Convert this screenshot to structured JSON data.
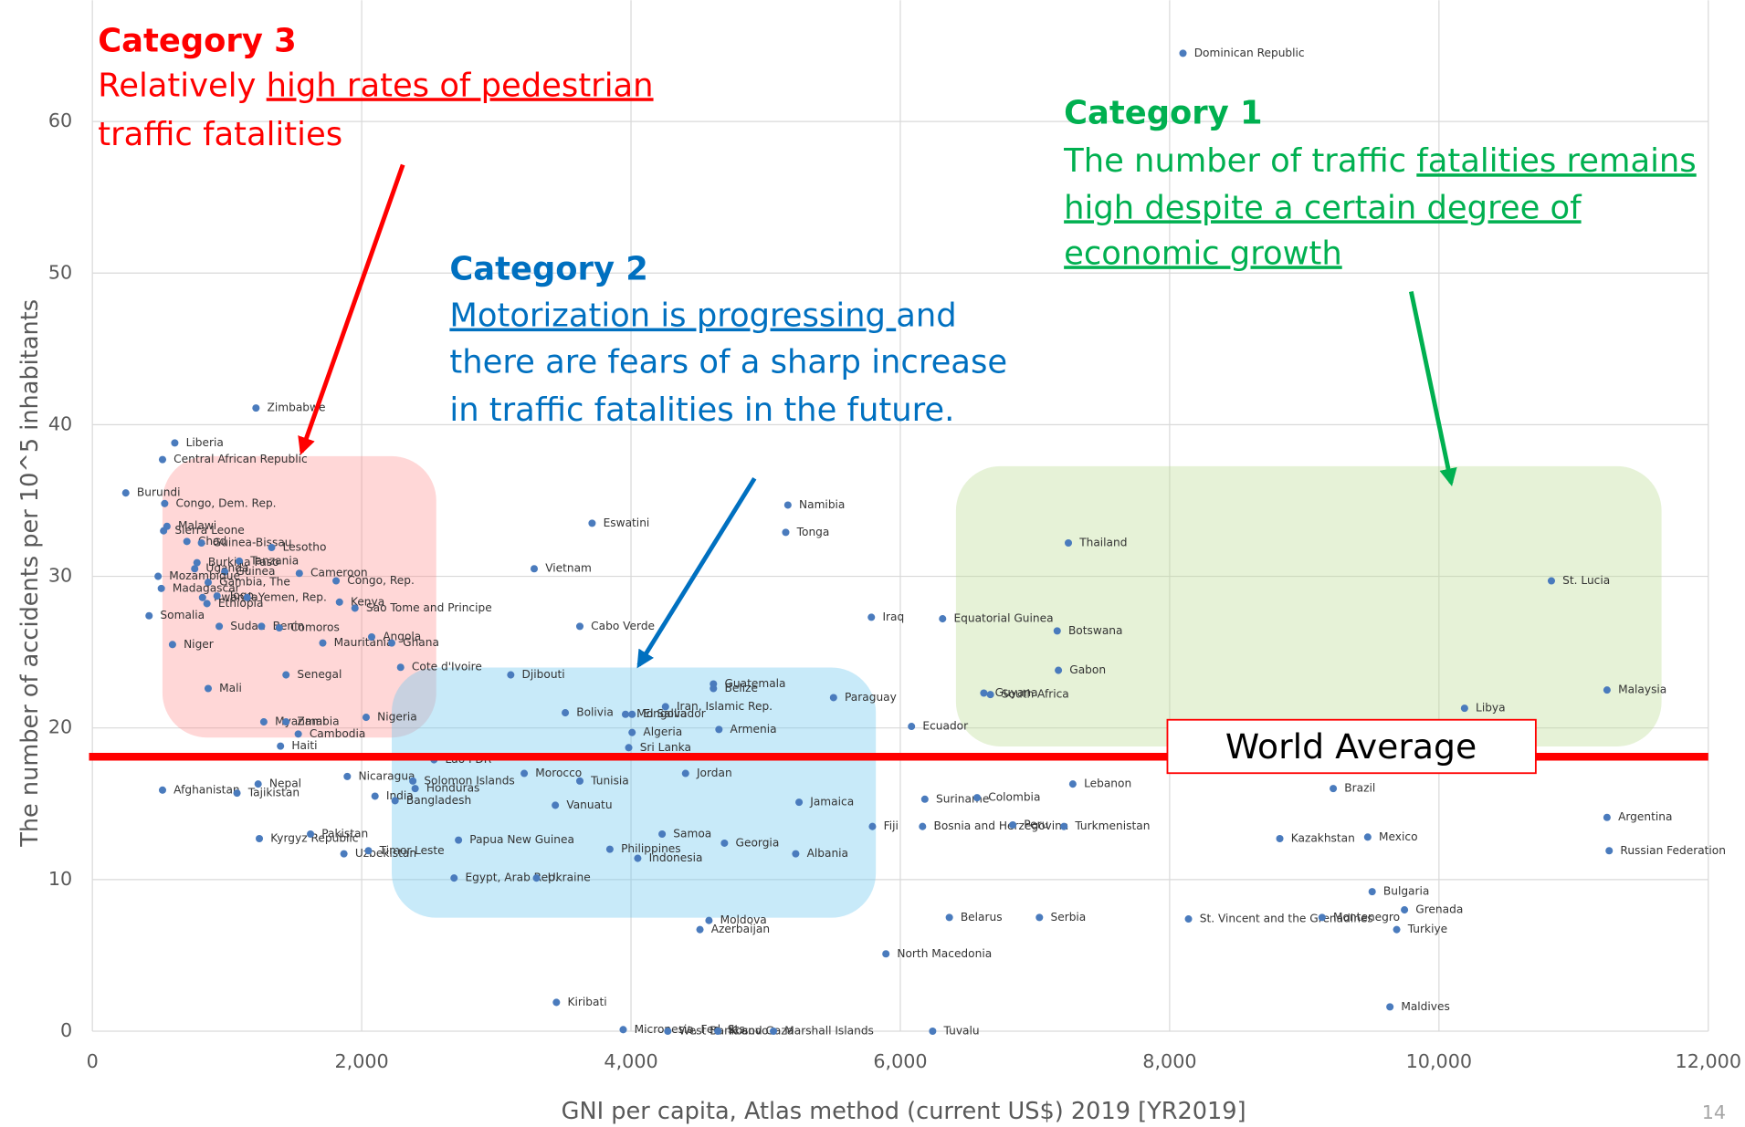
{
  "chart_data": {
    "type": "scatter",
    "x_label": "GNI per capita, Atlas method (current US$)   2019 [YR2019]",
    "y_label": "The number of accidents per 10^5 inhabitants",
    "xlim": [
      0,
      12000
    ],
    "ylim": [
      0,
      68
    ],
    "xticks": [
      0,
      {
        "value": 2000,
        "label": "2,000"
      },
      {
        "value": 4000,
        "label": "4,000"
      },
      {
        "value": 6000,
        "label": "6,000"
      },
      {
        "value": 8000,
        "label": "8,000"
      },
      {
        "value": 10000,
        "label": "10,000"
      },
      {
        "value": 12000,
        "label": "12,000"
      }
    ],
    "yticks": [
      0,
      10,
      20,
      30,
      40,
      50,
      60
    ],
    "grid": true,
    "color": "#4a7bbd",
    "labels": [
      "Dominican Republic",
      "Zimbabwe",
      "Liberia",
      "Central African Republic",
      "Burundi",
      "Congo, Dem. Rep.",
      "Malawi",
      "Sierra Leone",
      "Chad",
      "Guinea-Bissau",
      "Lesotho",
      "Burkina Faso",
      "Tanzania",
      "Uganda",
      "Guinea",
      "Cameroon",
      "Mozambique",
      "Gambia, The",
      "Congo, Rep.",
      "Madagascar",
      "Rwanda",
      "Togo",
      "Ethiopia",
      "Yemen, Rep.",
      "Kenya",
      "Sao Tome and Principe",
      "Somalia",
      "Sudan",
      "Benin",
      "Comoros",
      "Niger",
      "Mauritania",
      "Angola",
      "Ghana",
      "Cote d'Ivoire",
      "Senegal",
      "Mali",
      "Myanmar",
      "Zambia",
      "Nigeria",
      "Cambodia",
      "Haiti",
      "Eswatini",
      "Vietnam",
      "Namibia",
      "Tonga",
      "Thailand",
      "St. Lucia",
      "Iraq",
      "Equatorial Guinea",
      "Botswana",
      "Cabo Verde",
      "Guatemala",
      "Belize",
      "Mongolia",
      "Djibouti",
      "Gabon",
      "Paraguay",
      "Guyana",
      "South Africa",
      "Malaysia",
      "Libya",
      "Bolivia",
      "El Salvador",
      "Iran, Islamic Rep.",
      "Algeria",
      "Armenia",
      "Ecuador",
      "Sri Lanka",
      "Lao PDR",
      "Morocco",
      "Nicaragua",
      "Tunisia",
      "Jordan",
      "Lebanon",
      "Solomon Islands",
      "Honduras",
      "Afghanistan",
      "Nepal",
      "Tajikistan",
      "India",
      "Bangladesh",
      "Vanuatu",
      "Jamaica",
      "Suriname",
      "Colombia",
      "Brazil",
      "Fiji",
      "Bosnia and Herzegovina",
      "Peru",
      "Turkmenistan",
      "Argentina",
      "Kyrgyz Republic",
      "Pakistan",
      "Samoa",
      "Papua New Guinea",
      "Georgia",
      "Kazakhstan",
      "Mexico",
      "Russian Federation",
      "Uzbekistan",
      "Timor-Leste",
      "Philippines",
      "Indonesia",
      "Albania",
      "Egypt, Arab Rep.",
      "Ukraine",
      "Bulgaria",
      "Grenada",
      "Belarus",
      "Serbia",
      "St. Vincent and the Grenadines",
      "Montenegro",
      "Moldova",
      "Azerbaijan",
      "Turkiye",
      "North Macedonia",
      "Kiribati",
      "Maldives",
      "Micronesia, Fed. Sts.",
      "West Bank and Gaza",
      "Kosovo",
      "Marshall Islands",
      "Tuvalu"
    ],
    "x": [
      8099,
      1215,
      612,
      521,
      248,
      537,
      554,
      529,
      702,
      810,
      1331,
      777,
      1091,
      760,
      983,
      1537,
      488,
      860,
      1810,
      512,
      818,
      926,
      851,
      1149,
      1835,
      1950,
      421,
      942,
      1256,
      1388,
      595,
      1711,
      2074,
      2223,
      2289,
      1438,
      860,
      1273,
      1438,
      2033,
      1529,
      1397,
      3711,
      3281,
      5165,
      5149,
      7248,
      10835,
      5785,
      6314,
      7165,
      3620,
      4612,
      4612,
      3959,
      3107,
      7174,
      5504,
      6620,
      6669,
      11248,
      10190,
      3512,
      4008,
      4256,
      4008,
      4653,
      6083,
      3983,
      2537,
      3207,
      1893,
      3620,
      4405,
      7281,
      2380,
      2397,
      521,
      1231,
      1074,
      2099,
      2248,
      3438,
      5248,
      6182,
      6570,
      9215,
      5793,
      6165,
      6835,
      7215,
      11248,
      1240,
      1620,
      4231,
      2719,
      4694,
      8818,
      9471,
      11264,
      1868,
      2050,
      3843,
      4050,
      5223,
      2686,
      3298,
      9504,
      9744,
      6364,
      7033,
      8140,
      9132,
      4579,
      4512,
      9686,
      5893,
      3446,
      9636,
      3942,
      4273,
      4645,
      5058,
      6240
    ],
    "values": [
      64.5,
      41.1,
      38.8,
      37.7,
      35.5,
      34.8,
      33.3,
      33.0,
      32.3,
      32.2,
      31.9,
      30.9,
      31.0,
      30.5,
      30.3,
      30.2,
      30.0,
      29.6,
      29.7,
      29.2,
      28.6,
      28.7,
      28.2,
      28.6,
      28.3,
      27.9,
      27.4,
      26.7,
      26.7,
      26.6,
      25.5,
      25.6,
      26.0,
      25.6,
      24.0,
      23.5,
      22.6,
      20.4,
      20.4,
      20.7,
      19.6,
      18.8,
      33.5,
      30.5,
      34.7,
      32.9,
      32.2,
      29.7,
      27.3,
      27.2,
      26.4,
      26.7,
      22.9,
      22.6,
      20.9,
      23.5,
      23.8,
      22.0,
      22.3,
      22.2,
      22.5,
      21.3,
      21.0,
      20.9,
      21.4,
      19.7,
      19.9,
      20.1,
      18.7,
      17.9,
      17.0,
      16.8,
      16.5,
      17.0,
      16.3,
      16.5,
      16.0,
      15.9,
      16.3,
      15.7,
      15.5,
      15.2,
      14.9,
      15.1,
      15.3,
      15.4,
      16.0,
      13.5,
      13.5,
      13.6,
      13.5,
      14.1,
      12.7,
      13.0,
      13.0,
      12.6,
      12.4,
      12.7,
      12.8,
      11.9,
      11.7,
      11.9,
      12.0,
      11.4,
      11.7,
      10.1,
      10.1,
      9.2,
      8.0,
      7.5,
      7.5,
      7.4,
      7.5,
      7.3,
      6.7,
      6.7,
      5.1,
      1.9,
      1.6,
      0.1,
      0.0,
      0.0,
      0.0,
      0.0
    ],
    "reference_line": {
      "label": "World Average",
      "value": 18.1,
      "color": "#ff0000"
    },
    "annotations": [
      {
        "heading": "Category 3",
        "color": "#ff0000",
        "lines": [
          [
            {
              "text": "Relatively "
            },
            {
              "text": "high rates of pedestrian",
              "underline": true
            }
          ],
          [
            {
              "text": "traffic fatalities"
            }
          ]
        ]
      },
      {
        "heading": "Category 2",
        "color": "#0070c0",
        "lines": [
          [
            {
              "text": "Motorization is progressing ",
              "underline": true
            },
            {
              "text": "and"
            }
          ],
          [
            {
              "text": "there are fears of a sharp increase"
            }
          ],
          [
            {
              "text": "in traffic fatalities in the future."
            }
          ]
        ]
      },
      {
        "heading": "Category 1",
        "color": "#00b050",
        "lines": [
          [
            {
              "text": "The number of traffic "
            },
            {
              "text": "fatalities remains",
              "underline": true
            }
          ],
          [
            {
              "text": "high despite a certain degree of",
              "underline": true
            }
          ],
          [
            {
              "text": "economic growth",
              "underline": true
            }
          ]
        ]
      }
    ]
  },
  "page_number": "14"
}
